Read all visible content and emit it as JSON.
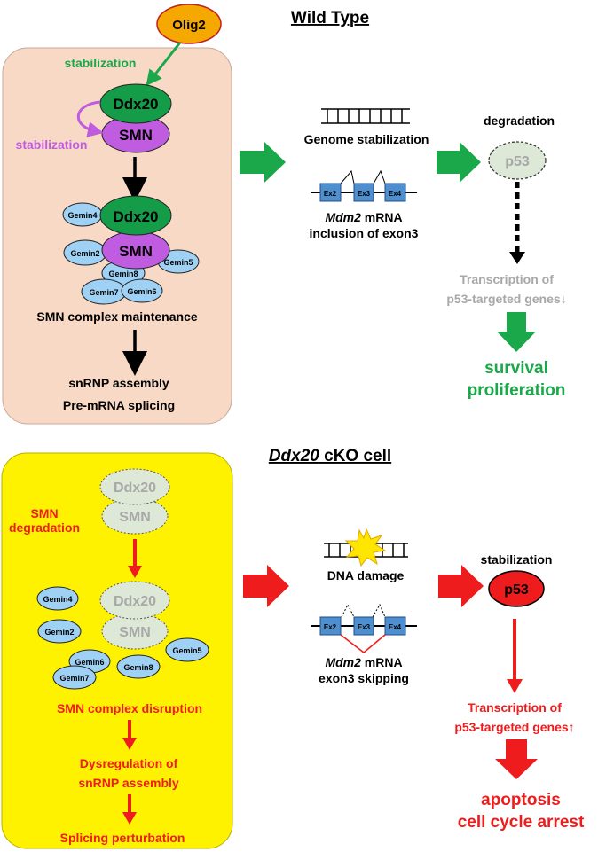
{
  "wild_type": {
    "title": "Wild Type",
    "olig2": "Olig2",
    "stabilization_olig2": "stabilization",
    "stabilization_smn": "stabilization",
    "ddx20": "Ddx20",
    "smn": "SMN",
    "complex_ddx20": "Ddx20",
    "complex_smn": "SMN",
    "gemins": {
      "gemin4": "Gemin4",
      "gemin2": "Gemin2",
      "gemin8": "Gemin8",
      "gemin5": "Gemin5",
      "gemin7": "Gemin7",
      "gemin6": "Gemin6"
    },
    "complex_label": "SMN complex maintenance",
    "snrnp": "snRNP assembly",
    "splicing": "Pre-mRNA splicing",
    "genome": "Genome stabilization",
    "exons": {
      "ex2": "Ex2",
      "ex3": "Ex3",
      "ex4": "Ex4"
    },
    "mdm2_italic": "Mdm2",
    "mdm2_rest": " mRNA",
    "inclusion": "inclusion of exon3",
    "p53_state": "degradation",
    "p53": "p53",
    "transcription_1": "Transcription of",
    "transcription_2": "p53-targeted genes",
    "down_arrow": "↓",
    "survival": "survival",
    "proliferation": "proliferation"
  },
  "cko": {
    "title_italic": "Ddx20",
    "title_rest": " cKO cell",
    "ddx20": "Ddx20",
    "smn": "SMN",
    "smn_degradation_1": "SMN",
    "smn_degradation_2": "degradation",
    "complex_ddx20": "Ddx20",
    "complex_smn": "SMN",
    "gemins": {
      "gemin4": "Gemin4",
      "gemin2": "Gemin2",
      "gemin6": "Gemin6",
      "gemin7": "Gemin7",
      "gemin8": "Gemin8",
      "gemin5": "Gemin5"
    },
    "disruption": "SMN complex disruption",
    "dysregulation_1": "Dysregulation of",
    "dysregulation_2": "snRNP assembly",
    "splicing": "Splicing perturbation",
    "dna_damage": "DNA damage",
    "exons": {
      "ex2": "Ex2",
      "ex3": "Ex3",
      "ex4": "Ex4"
    },
    "mdm2_italic": "Mdm2",
    "mdm2_rest": " mRNA",
    "skipping": "exon3 skipping",
    "p53_state": "stabilization",
    "p53": "p53",
    "transcription_1": "Transcription of",
    "transcription_2": "p53-targeted genes",
    "up_arrow": "↑",
    "apoptosis": "apoptosis",
    "arrest": "cell cycle arrest"
  },
  "colors": {
    "wt_panel": "#f8d9c6",
    "cko_panel": "#fff200",
    "green": "#1aa84a",
    "red": "#ee1c1c",
    "ddx20_green": "#149c48",
    "smn_purple": "#c05ce0",
    "gemin_blue": "#9fd1f5",
    "olig2_orange": "#f5a800",
    "grey_text": "#a8a8a8",
    "faded_fill": "#dde8d6"
  }
}
